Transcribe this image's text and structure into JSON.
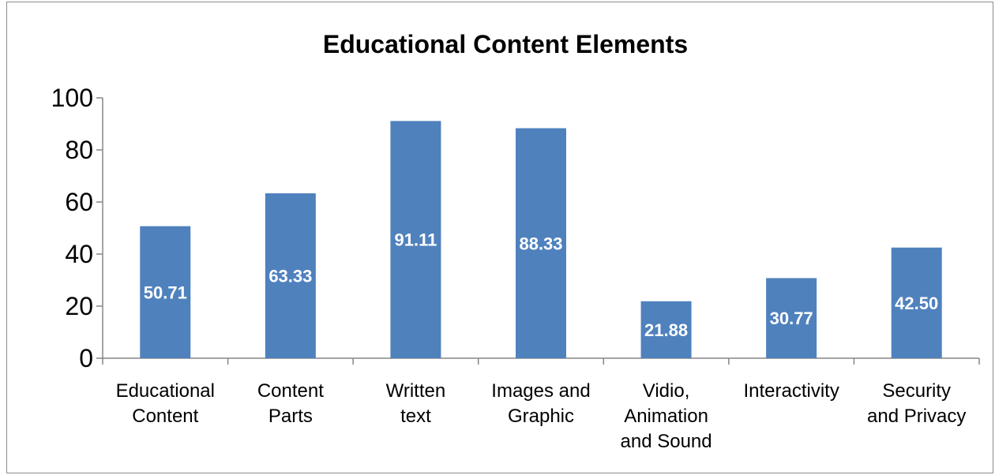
{
  "chart_data": {
    "type": "bar",
    "title": "Educational Content Elements",
    "xlabel": "",
    "ylabel": "",
    "categories": [
      [
        "Educational",
        "Content"
      ],
      [
        "Content",
        "Parts"
      ],
      [
        "Written",
        "text"
      ],
      [
        "Images and",
        "Graphic"
      ],
      [
        "Vidio,",
        "Animation",
        "and Sound"
      ],
      [
        "Interactivity"
      ],
      [
        "Security",
        "and Privacy"
      ]
    ],
    "values": [
      50.71,
      63.33,
      91.11,
      88.33,
      21.88,
      30.77,
      42.5
    ],
    "data_labels": [
      "50.71",
      "63.33",
      "91.11",
      "88.33",
      "21.88",
      "30.77",
      "42.50"
    ],
    "ylim": [
      0,
      100
    ],
    "yticks": [
      0,
      20,
      40,
      60,
      80,
      100
    ],
    "grid": false,
    "legend": "none",
    "bar_color": "#4f81bd",
    "axis_color": "#868686",
    "label_color": "#ffffff"
  }
}
